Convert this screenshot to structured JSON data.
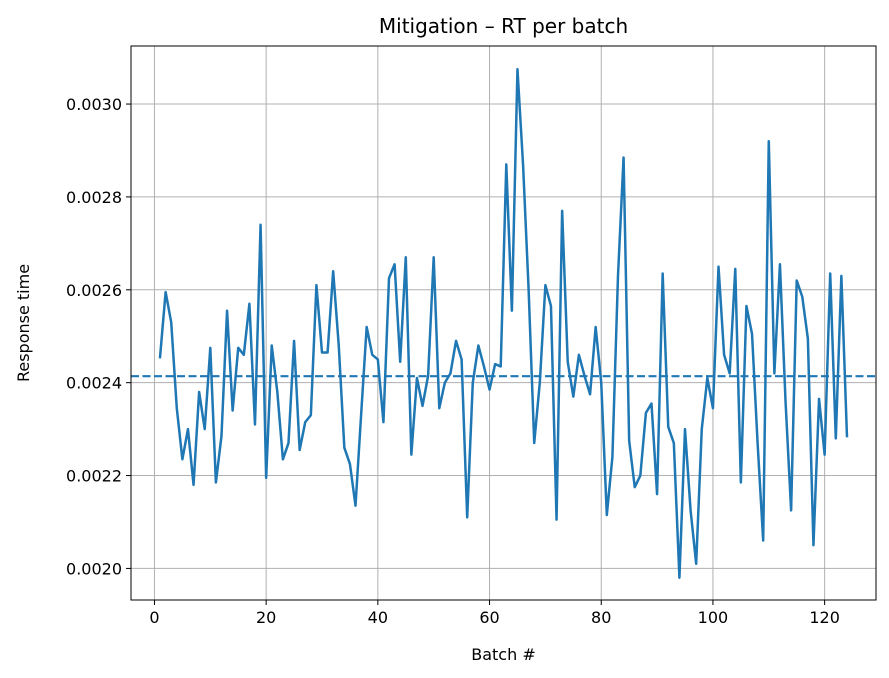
{
  "chart_data": {
    "type": "line",
    "title": "Mitigation – RT per batch",
    "xlabel": "Batch #",
    "ylabel": "Response time",
    "xlim": [
      -4.2,
      129.2
    ],
    "ylim": [
      0.001932,
      0.003125
    ],
    "xticks": [
      0,
      20,
      40,
      60,
      80,
      100,
      120
    ],
    "xtick_labels": [
      "0",
      "20",
      "40",
      "60",
      "80",
      "100",
      "120"
    ],
    "yticks": [
      0.002,
      0.0022,
      0.0024,
      0.0026,
      0.0028,
      0.003
    ],
    "ytick_labels": [
      "0.0020",
      "0.0022",
      "0.0024",
      "0.0026",
      "0.0028",
      "0.0030"
    ],
    "grid": true,
    "line_color": "#1f77b4",
    "mean_line": {
      "value": 0.002414,
      "style": "dashed",
      "color": "#1f77b4"
    },
    "x": [
      1,
      2,
      3,
      4,
      5,
      6,
      7,
      8,
      9,
      10,
      11,
      12,
      13,
      14,
      15,
      16,
      17,
      18,
      19,
      20,
      21,
      22,
      23,
      24,
      25,
      26,
      27,
      28,
      29,
      30,
      31,
      32,
      33,
      34,
      35,
      36,
      37,
      38,
      39,
      40,
      41,
      42,
      43,
      44,
      45,
      46,
      47,
      48,
      49,
      50,
      51,
      52,
      53,
      54,
      55,
      56,
      57,
      58,
      59,
      60,
      61,
      62,
      63,
      64,
      65,
      66,
      67,
      68,
      69,
      70,
      71,
      72,
      73,
      74,
      75,
      76,
      77,
      78,
      79,
      80,
      81,
      82,
      83,
      84,
      85,
      86,
      87,
      88,
      89,
      90,
      91,
      92,
      93,
      94,
      95,
      96,
      97,
      98,
      99,
      100,
      101,
      102,
      103,
      104,
      105,
      106,
      107,
      108,
      109,
      110,
      111,
      112,
      113,
      114,
      115,
      116,
      117,
      118,
      119,
      120,
      121,
      122,
      123,
      124
    ],
    "y": [
      0.002455,
      0.002595,
      0.00253,
      0.002345,
      0.002235,
      0.0023,
      0.00218,
      0.00238,
      0.0023,
      0.002475,
      0.002185,
      0.002285,
      0.002555,
      0.00234,
      0.002475,
      0.00246,
      0.00257,
      0.00231,
      0.00274,
      0.002195,
      0.00248,
      0.00238,
      0.002235,
      0.00227,
      0.00249,
      0.002255,
      0.002315,
      0.00233,
      0.00261,
      0.002465,
      0.002465,
      0.00264,
      0.00248,
      0.00226,
      0.002225,
      0.002135,
      0.00233,
      0.00252,
      0.00246,
      0.00245,
      0.002315,
      0.002625,
      0.002655,
      0.002445,
      0.00267,
      0.002245,
      0.00241,
      0.00235,
      0.002415,
      0.00267,
      0.002345,
      0.0024,
      0.00242,
      0.00249,
      0.00245,
      0.00211,
      0.0024,
      0.00248,
      0.002435,
      0.002385,
      0.00244,
      0.002435,
      0.00287,
      0.002555,
      0.003075,
      0.00287,
      0.0026,
      0.00227,
      0.0024,
      0.00261,
      0.002565,
      0.002105,
      0.00277,
      0.002445,
      0.00237,
      0.00246,
      0.002415,
      0.002375,
      0.00252,
      0.0024,
      0.002115,
      0.00224,
      0.00263,
      0.002885,
      0.002275,
      0.002175,
      0.0022,
      0.002335,
      0.002355,
      0.00216,
      0.002635,
      0.002305,
      0.00227,
      0.00198,
      0.0023,
      0.002125,
      0.00201,
      0.0023,
      0.00241,
      0.002345,
      0.00265,
      0.00246,
      0.00242,
      0.002645,
      0.002185,
      0.002565,
      0.002505,
      0.00227,
      0.00206,
      0.00292,
      0.00242,
      0.002655,
      0.00236,
      0.002125,
      0.00262,
      0.002585,
      0.002495,
      0.00205,
      0.002365,
      0.002245,
      0.002635,
      0.00228,
      0.00263,
      0.002285
    ]
  }
}
